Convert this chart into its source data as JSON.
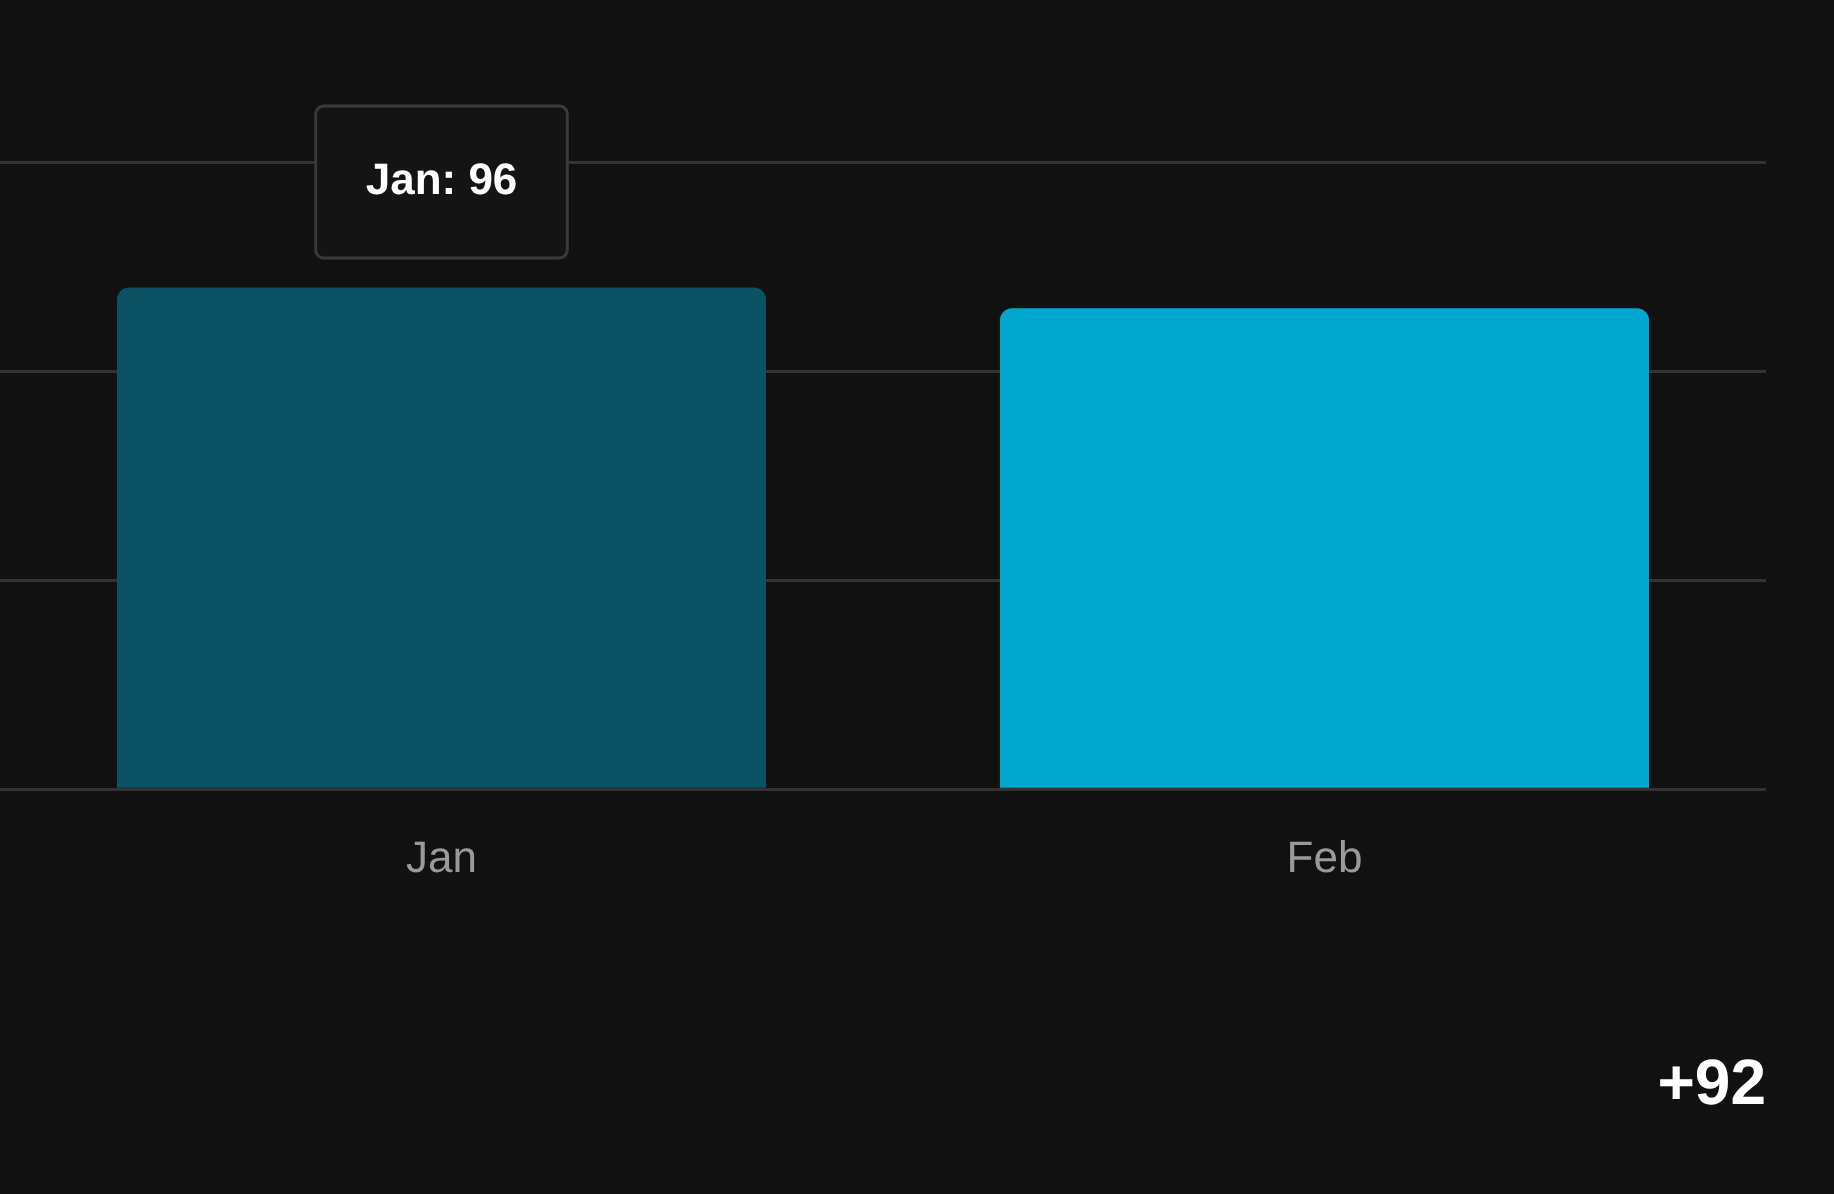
{
  "chart_data": {
    "type": "bar",
    "categories": [
      "Jan",
      "Feb"
    ],
    "series": [
      {
        "colors": [
          "#0a5264",
          "#00a8cf"
        ],
        "values": [
          96,
          92
        ],
        "value_labels": [
          "Jan: 96",
          null
        ]
      }
    ],
    "ylim": [
      0,
      120
    ],
    "yticks": [
      {
        "value": 0,
        "label": null
      },
      {
        "value": 40,
        "label": null
      },
      {
        "value": 80,
        "label": null
      },
      {
        "value": 120,
        "label": null
      }
    ],
    "tick_labels": "x",
    "grid": "y",
    "legend": false,
    "annotations": [
      "+92"
    ]
  }
}
